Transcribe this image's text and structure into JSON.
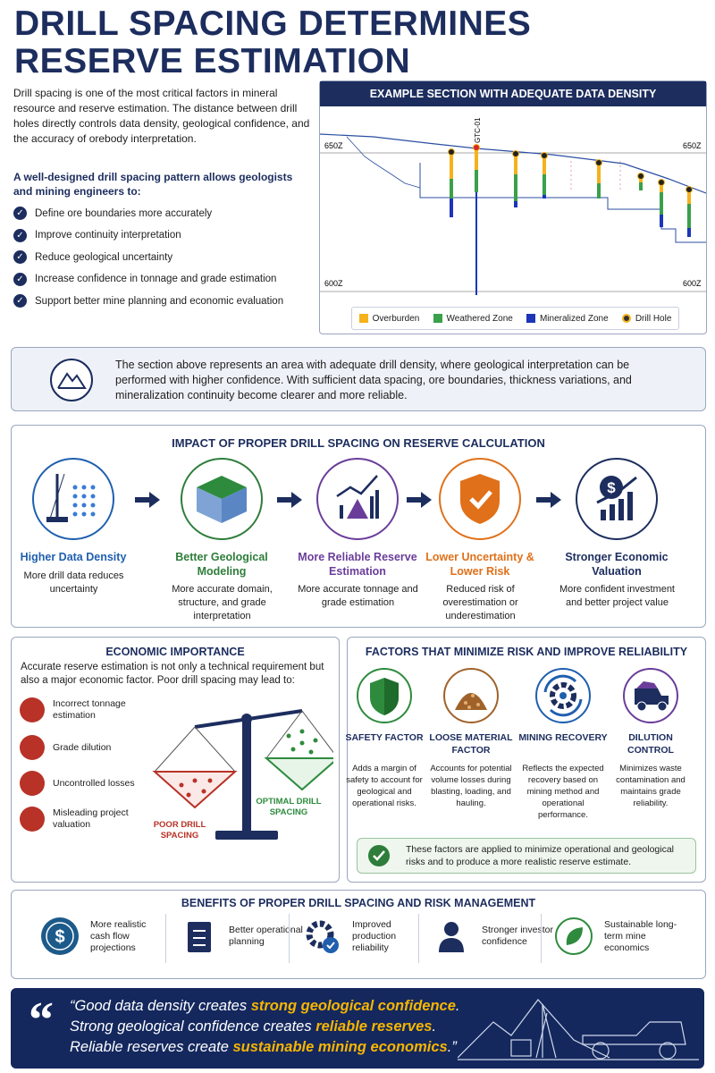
{
  "header": {
    "title_lines": [
      "DRILL SPACING DETERMINES",
      "RESERVE ESTIMATION"
    ],
    "intro": "Drill spacing is one of the most critical factors in mineral resource and reserve estimation. The distance between drill holes directly controls data density, geological confidence, and the accuracy of orebody interpretation.",
    "lead": "A well-designed drill spacing pattern allows geologists and mining engineers to:",
    "bullets": [
      "Define ore boundaries more accurately",
      "Improve continuity interpretation",
      "Reduce geological uncertainty",
      "Increase confidence in tonnage and grade estimation",
      "Support better mine planning and economic evaluation"
    ]
  },
  "section": {
    "title": "EXAMPLE SECTION WITH ADEQUATE DATA DENSITY",
    "hole_label": "GTC-01",
    "upper_level": {
      "left": "650Z",
      "right": "650Z"
    },
    "lower_level": {
      "left": "600Z",
      "right": "600Z"
    },
    "legend": [
      "Overburden",
      "Weathered Zone",
      "Mineralized Zone",
      "Drill Hole"
    ]
  },
  "note": "The section above represents an area with adequate drill density, where geological interpretation can be performed with higher confidence. With sufficient data spacing, ore boundaries, thickness variations, and mineralization continuity become clearer and more reliable.",
  "impact": {
    "title": "IMPACT OF PROPER DRILL SPACING ON RESERVE CALCULATION",
    "steps": [
      {
        "title": "Higher Data Density",
        "text": "More drill data reduces uncertainty"
      },
      {
        "title": "Better Geological Modeling",
        "text": "More accurate domain, structure, and grade interpretation"
      },
      {
        "title": "More Reliable Reserve Estimation",
        "text": "More accurate tonnage and grade estimation"
      },
      {
        "title": "Lower Uncertainty & Lower Risk",
        "text": "Reduced risk of overestimation or underestimation"
      },
      {
        "title": "Stronger Economic Valuation",
        "text": "More confident investment and better project value"
      }
    ]
  },
  "economic": {
    "title": "ECONOMIC IMPORTANCE",
    "intro": "Accurate reserve estimation is not only a technical requirement but also a major economic factor. Poor drill spacing may lead to:",
    "items": [
      "Incorrect tonnage estimation",
      "Grade dilution",
      "Uncontrolled losses",
      "Misleading project valuation"
    ],
    "poor_label": "POOR DRILL SPACING",
    "optimal_label": "OPTIMAL DRILL SPACING"
  },
  "factors": {
    "title": "FACTORS THAT MINIMIZE RISK AND IMPROVE RELIABILITY",
    "items": [
      {
        "title": "SAFETY FACTOR",
        "text": "Adds a margin of safety to account for geological and operational risks."
      },
      {
        "title": "LOOSE MATERIAL FACTOR",
        "text": "Accounts for potential volume losses during blasting, loading, and hauling."
      },
      {
        "title": "MINING RECOVERY",
        "text": "Reflects the expected recovery based on mining method and operational performance."
      },
      {
        "title": "DILUTION CONTROL",
        "text": "Minimizes waste contamination and maintains grade reliability."
      }
    ],
    "note": "These factors are applied to minimize operational and geological risks and to produce a more realistic reserve estimate."
  },
  "benefits": {
    "title": "BENEFITS OF PROPER DRILL SPACING AND RISK MANAGEMENT",
    "items": [
      "More realistic cash flow projections",
      "Better operational planning",
      "Improved production reliability",
      "Stronger investor confidence",
      "Sustainable long-term mine economics"
    ]
  },
  "quote": {
    "lines": [
      {
        "before": "“Good data density creates ",
        "highlight": "strong geological confidence",
        "after": "."
      },
      {
        "before": "Strong geological confidence creates ",
        "highlight": "reliable reserves",
        "after": "."
      },
      {
        "before": "Reliable reserves create ",
        "highlight": "sustainable mining economics",
        "after": ".”"
      }
    ]
  }
}
